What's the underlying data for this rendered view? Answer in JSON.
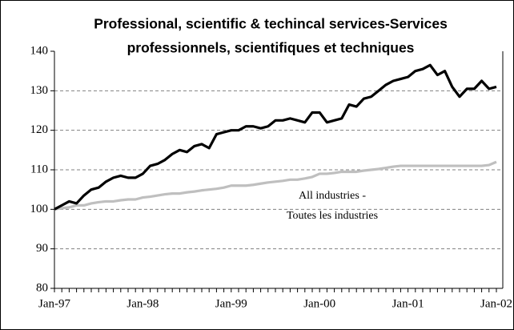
{
  "chart_data": {
    "type": "line",
    "title": [
      "Professional, scientific & techincal services-Services",
      "professionnels, scientifiques et techniques"
    ],
    "annotation": [
      "All industries -",
      "Toutes les industries"
    ],
    "categories": [
      "Jan-97",
      null,
      null,
      null,
      null,
      null,
      null,
      null,
      null,
      null,
      null,
      null,
      "Jan-98",
      null,
      null,
      null,
      null,
      null,
      null,
      null,
      null,
      null,
      null,
      null,
      "Jan-99",
      null,
      null,
      null,
      null,
      null,
      null,
      null,
      null,
      null,
      null,
      null,
      "Jan-00",
      null,
      null,
      null,
      null,
      null,
      null,
      null,
      null,
      null,
      null,
      null,
      "Jan-01",
      null,
      null,
      null,
      null,
      null,
      null,
      null,
      null,
      null,
      null,
      null,
      "Jan-02"
    ],
    "series": [
      {
        "color": "#000000",
        "width": 3.2,
        "values": [
          100,
          101,
          102,
          101.5,
          103.5,
          105,
          105.5,
          107,
          108,
          108.5,
          108,
          108,
          109,
          111,
          111.5,
          112.5,
          114,
          115,
          114.5,
          116,
          116.5,
          115.5,
          119,
          119.5,
          120,
          120,
          121,
          121,
          120.5,
          121,
          122.5,
          122.5,
          123,
          122.5,
          122,
          124.5,
          124.5,
          122,
          122.5,
          123,
          126.5,
          126,
          128,
          128.5,
          130,
          131.5,
          132.5,
          133,
          133.5,
          135,
          135.5,
          136.5,
          134,
          135,
          131,
          128.5,
          130.5,
          130.5,
          132.5,
          130.5,
          131
        ]
      },
      {
        "color": "#bfbfbf",
        "width": 3.2,
        "values": [
          100,
          100.3,
          100.5,
          101,
          101,
          101.5,
          101.8,
          102,
          102,
          102.3,
          102.5,
          102.5,
          103,
          103.2,
          103.5,
          103.8,
          104,
          104,
          104.3,
          104.5,
          104.8,
          105,
          105.2,
          105.5,
          106,
          106,
          106,
          106.2,
          106.5,
          106.8,
          107,
          107.2,
          107.5,
          107.5,
          107.8,
          108.2,
          109,
          109,
          109.2,
          109.5,
          109.5,
          109.5,
          109.8,
          110,
          110.2,
          110.5,
          110.8,
          111,
          111,
          111,
          111,
          111,
          111,
          111,
          111,
          111,
          111,
          111,
          111,
          111.2,
          112
        ]
      }
    ],
    "ylim": [
      80,
      140
    ],
    "yticks": [
      80,
      90,
      100,
      110,
      120,
      130,
      140
    ],
    "grid": true
  }
}
